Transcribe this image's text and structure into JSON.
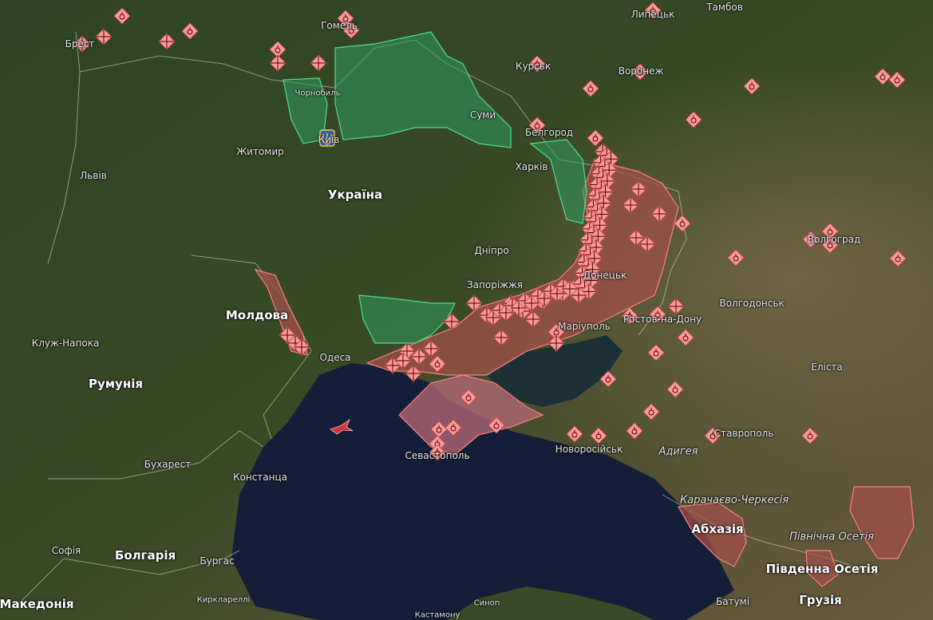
{
  "map": {
    "basemap": "satellite",
    "colors": {
      "occupied_fill": "#a0504a",
      "occupied_stroke": "#ff8080",
      "liberated_fill": "#2f9a60",
      "liberated_stroke": "#4de08a",
      "marker_fill": "#ff9a9a",
      "sea": "#141e38"
    },
    "marker_icons": [
      "explosion-icon",
      "artillery-grid-icon"
    ],
    "special_icons": [
      "ukraine-coat-of-arms-icon",
      "aircraft-icon"
    ],
    "labels": {
      "brest": "Брест",
      "gomel": "Гомель",
      "chornobyl": "Чорнобиль",
      "kyiv": "Київ",
      "zhytomyr": "Житомир",
      "lviv": "Львів",
      "ukraine": "Україна",
      "sumy": "Суми",
      "kursk": "Курськ",
      "lipetsk": "Липецьк",
      "tambov": "Тамбов",
      "voronezh": "Воронеж",
      "belgorod": "Белгород",
      "kharkiv": "Харків",
      "dnipro": "Дніпро",
      "zaporizhzhia": "Запоріжжя",
      "donetsk": "Донецьк",
      "mariupol": "Маріуполь",
      "rostov": "Ростов-на-Дону",
      "volgograd": "Волгоград",
      "volgodonsk": "Волгодонськ",
      "elista": "Еліста",
      "moldova": "Молдова",
      "odesa": "Одеса",
      "cluj": "Клуж-Напока",
      "romania": "Румунія",
      "bucharest": "Бухарест",
      "constanta": "Констанца",
      "sevastopol": "Севастополь",
      "novorossiysk": "Новоросійськ",
      "adygea": "Адигея",
      "stavropol": "Ставрополь",
      "kchr": "Карачаєво-Черкесія",
      "abkhazia": "Абхазія",
      "n_ossetia": "Північна Осетія",
      "s_ossetia": "Південна Осетія",
      "georgia": "Грузія",
      "batumi": "Батумі",
      "sofia": "Софія",
      "bulgaria": "Болгарія",
      "burgas": "Бургас",
      "macedonia": "Македонія",
      "kirklareli": "Кирклареллі",
      "sinop": "Синоп",
      "kastamonu": "Кастамону"
    }
  }
}
